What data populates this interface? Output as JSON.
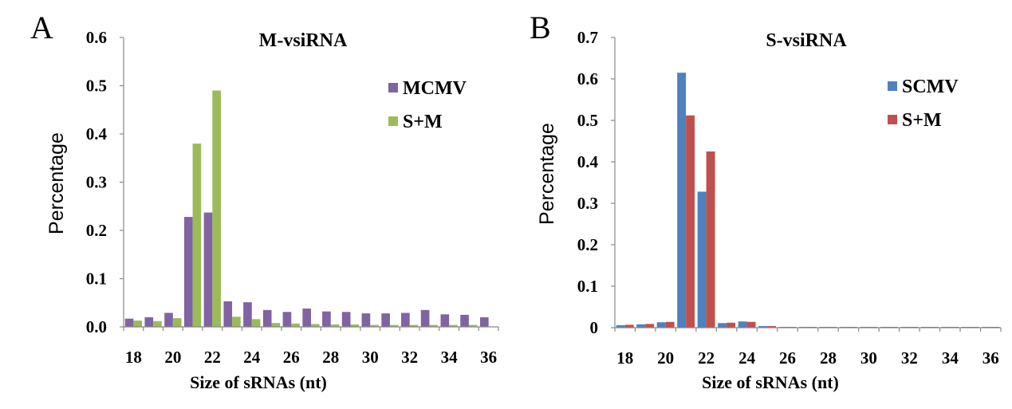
{
  "panels": [
    {
      "letter": "A",
      "title": "M-vsiRNA",
      "xlabel": "Size of sRNAs (nt)",
      "ylabel": "Percentage",
      "xticks": [
        "18",
        "20",
        "22",
        "24",
        "26",
        "28",
        "30",
        "32",
        "34",
        "36"
      ],
      "yticks": [
        "0.0",
        "0.1",
        "0.2",
        "0.3",
        "0.4",
        "0.5",
        "0.6"
      ],
      "legend": [
        "MCMV",
        "S+M"
      ]
    },
    {
      "letter": "B",
      "title": "S-vsiRNA",
      "xlabel": "Size of sRNAs (nt)",
      "ylabel": "Percentage",
      "xticks": [
        "18",
        "20",
        "22",
        "24",
        "26",
        "28",
        "30",
        "32",
        "34",
        "36"
      ],
      "yticks": [
        "0",
        "0.1",
        "0.2",
        "0.3",
        "0.4",
        "0.5",
        "0.6",
        "0.7"
      ],
      "legend": [
        "SCMV",
        "S+M"
      ]
    }
  ],
  "chart_data": [
    {
      "type": "bar",
      "title": "M-vsiRNA",
      "xlabel": "Size of sRNAs (nt)",
      "ylabel": "Percentage",
      "ylim": [
        0,
        0.6
      ],
      "grid": false,
      "legend_position": "top-right",
      "categories": [
        18,
        19,
        20,
        21,
        22,
        23,
        24,
        25,
        26,
        27,
        28,
        29,
        30,
        31,
        32,
        33,
        34,
        35,
        36
      ],
      "series": [
        {
          "name": "MCMV",
          "color": "#8063A2",
          "values": [
            0.017,
            0.02,
            0.029,
            0.228,
            0.237,
            0.053,
            0.051,
            0.035,
            0.031,
            0.038,
            0.032,
            0.031,
            0.028,
            0.028,
            0.029,
            0.035,
            0.026,
            0.025,
            0.02
          ]
        },
        {
          "name": "S+M",
          "color": "#9BBB58",
          "values": [
            0.013,
            0.012,
            0.018,
            0.38,
            0.49,
            0.021,
            0.016,
            0.008,
            0.007,
            0.006,
            0.005,
            0.005,
            0.004,
            0.004,
            0.004,
            0.004,
            0.004,
            0.004,
            0.0
          ]
        }
      ]
    },
    {
      "type": "bar",
      "title": "S-vsiRNA",
      "xlabel": "Size of sRNAs (nt)",
      "ylabel": "Percentage",
      "ylim": [
        0,
        0.7
      ],
      "grid": false,
      "legend_position": "top-right",
      "categories": [
        18,
        19,
        20,
        21,
        22,
        23,
        24,
        25,
        26,
        27,
        28,
        29,
        30,
        31,
        32,
        33,
        34,
        35,
        36
      ],
      "series": [
        {
          "name": "SCMV",
          "color": "#4F81BC",
          "values": [
            0.006,
            0.008,
            0.013,
            0.615,
            0.328,
            0.011,
            0.015,
            0.004,
            0.002,
            0.002,
            0.002,
            0.002,
            0.002,
            0.002,
            0.002,
            0.002,
            0.002,
            0.002,
            0.002
          ]
        },
        {
          "name": "S+M",
          "color": "#C0504D",
          "values": [
            0.007,
            0.009,
            0.014,
            0.512,
            0.425,
            0.012,
            0.014,
            0.004,
            0.002,
            0.002,
            0.002,
            0.002,
            0.002,
            0.002,
            0.002,
            0.002,
            0.002,
            0.002,
            0.002
          ]
        }
      ]
    }
  ]
}
